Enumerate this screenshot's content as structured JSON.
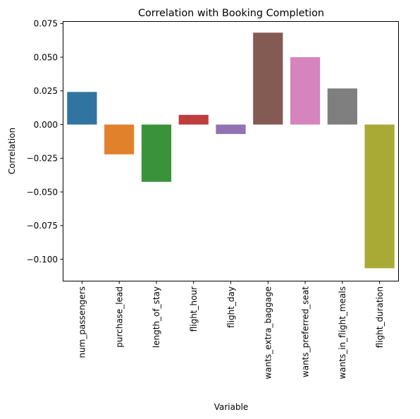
{
  "chart_data": {
    "type": "bar",
    "title": "Correlation with Booking Completion",
    "xlabel": "Variable",
    "ylabel": "Correlation",
    "categories": [
      "num_passengers",
      "purchase_lead",
      "length_of_stay",
      "flight_hour",
      "flight_day",
      "wants_extra_baggage",
      "wants_preferred_seat",
      "wants_in_flight_meals",
      "flight_duration"
    ],
    "values": [
      0.0242,
      -0.0221,
      -0.0425,
      0.0072,
      -0.007,
      0.0682,
      0.05,
      0.0268,
      -0.1066
    ],
    "colors": [
      "#3274a1",
      "#e1812c",
      "#3a923a",
      "#c03d3e",
      "#9372b2",
      "#845b53",
      "#d684bd",
      "#7f7f7f",
      "#a9aa35"
    ],
    "ylim": [
      -0.1159,
      0.0762
    ],
    "yticks": [
      0.075,
      0.05,
      0.025,
      0.0,
      -0.025,
      -0.05,
      -0.075,
      -0.1
    ],
    "ytick_labels": [
      "0.075",
      "0.050",
      "0.025",
      "0.000",
      "−0.025",
      "−0.050",
      "−0.075",
      "−0.100"
    ],
    "grid": false,
    "legend": "none"
  }
}
